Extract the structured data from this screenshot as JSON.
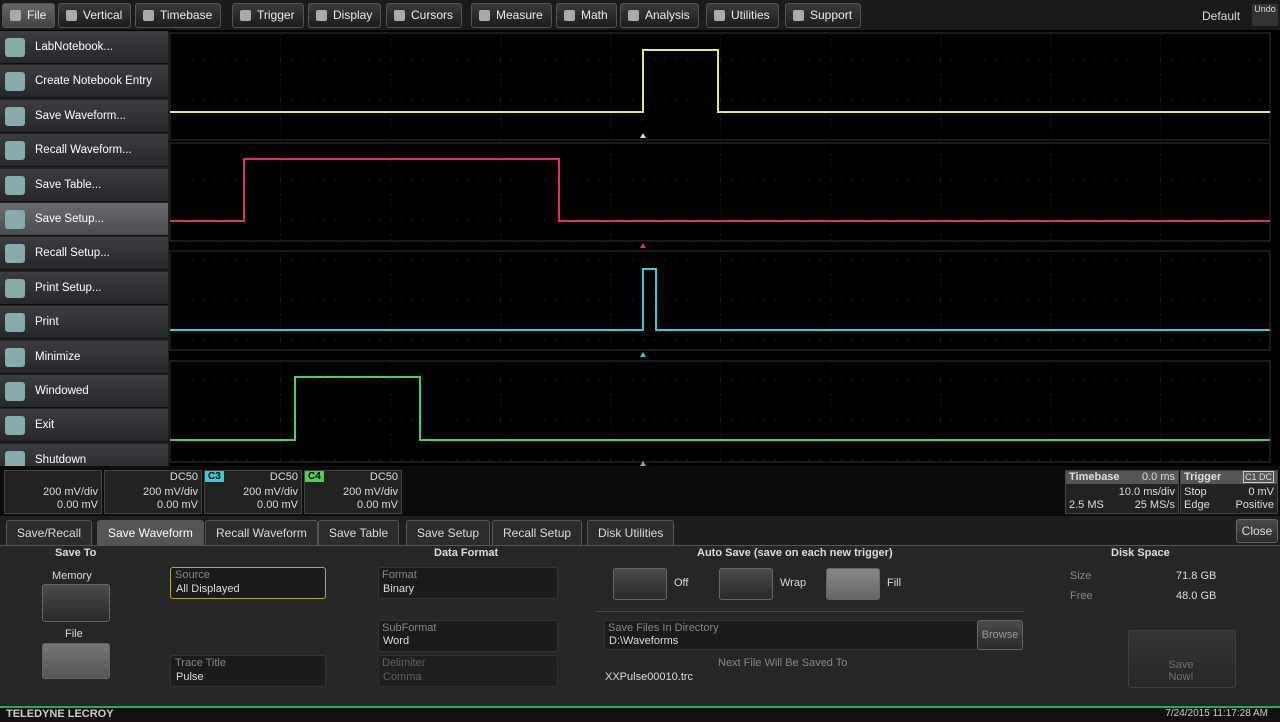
{
  "menubar": {
    "items": [
      "File",
      "Vertical",
      "Timebase",
      "Trigger",
      "Display",
      "Cursors",
      "Measure",
      "Math",
      "Analysis",
      "Utilities",
      "Support"
    ],
    "preset": "Default",
    "undo": "Undo"
  },
  "file_menu": {
    "items": [
      "LabNotebook...",
      "Create Notebook Entry",
      "Save Waveform...",
      "Recall Waveform...",
      "Save Table...",
      "Save Setup...",
      "Recall Setup...",
      "Print Setup...",
      "Print",
      "Minimize",
      "Windowed",
      "Exit",
      "Shutdown"
    ]
  },
  "channels": [
    {
      "label": null,
      "coupling": null,
      "scale": "200 mV/div",
      "offset": "0.00 mV"
    },
    {
      "label": null,
      "coupling": "DC50",
      "scale": "200 mV/div",
      "offset": "0.00 mV"
    },
    {
      "label": "C3",
      "coupling": "DC50",
      "scale": "200 mV/div",
      "offset": "0.00 mV"
    },
    {
      "label": "C4",
      "coupling": "DC50",
      "scale": "200 mV/div",
      "offset": "0.00 mV"
    }
  ],
  "timebase": {
    "title": "Timebase",
    "delay": "0.0 ms",
    "scale": "10.0 ms/div",
    "points": "2.5 MS",
    "rate": "25 MS/s"
  },
  "trigger": {
    "title": "Trigger",
    "source": "C1 DC",
    "mode": "Stop",
    "level": "0 mV",
    "type": "Edge",
    "slope": "Positive"
  },
  "tabs": {
    "items": [
      "Save/Recall",
      "Save Waveform",
      "Recall Waveform",
      "Save Table",
      "Save Setup",
      "Recall Setup",
      "Disk Utilities"
    ],
    "close": "Close"
  },
  "save_to": {
    "title": "Save To",
    "memory": "Memory",
    "file": "File"
  },
  "source": {
    "label": "Source",
    "value": "All Displayed"
  },
  "trace_title": {
    "label": "Trace Title",
    "value": "Pulse"
  },
  "data_format": {
    "title": "Data Format",
    "format_label": "Format",
    "format": "Binary",
    "subformat_label": "SubFormat",
    "subformat": "Word",
    "delimiter_label": "Delimiter",
    "delimiter": "Comma"
  },
  "auto_save": {
    "title": "Auto Save (save on each new trigger)",
    "options": [
      "Off",
      "Wrap",
      "Fill"
    ],
    "dir_label": "Save Files In Directory",
    "dir": "D:\\Waveforms",
    "browse": "Browse",
    "next_label": "Next File Will Be Saved To",
    "next_file": "XXPulse00010.trc"
  },
  "disk_space": {
    "title": "Disk Space",
    "size_label": "Size",
    "size": "71.8 GB",
    "free_label": "Free",
    "free": "48.0 GB",
    "save_now": "Save Now!"
  },
  "footer": {
    "brand": "TELEDYNE LECROY",
    "datetime": "7/24/2015 11:17:28 AM"
  }
}
